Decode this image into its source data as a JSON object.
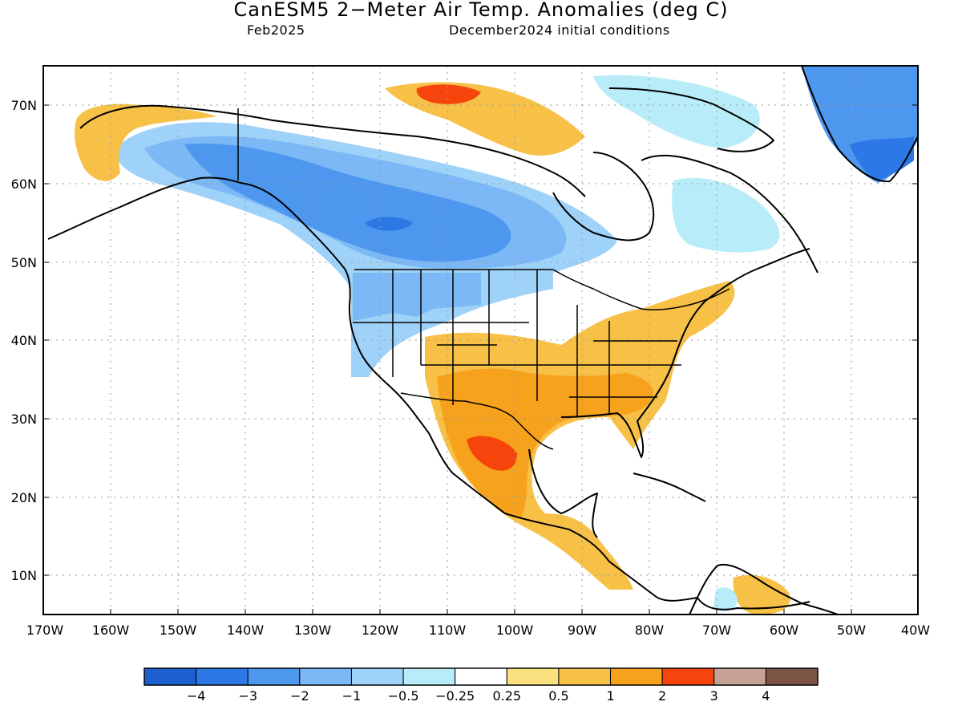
{
  "title": "CanESM5 2−Meter Air Temp. Anomalies (deg C)",
  "forecast_month": "Feb2025",
  "initial_conditions": "December2024 initial conditions",
  "axes": {
    "longitude_labels": [
      "170W",
      "160W",
      "150W",
      "140W",
      "130W",
      "120W",
      "110W",
      "100W",
      "90W",
      "80W",
      "70W",
      "60W",
      "50W",
      "40W"
    ],
    "latitude_labels": [
      "70N",
      "60N",
      "50N",
      "40N",
      "30N",
      "20N",
      "10N"
    ]
  },
  "colorbar": {
    "colors": [
      "#1c5fd0",
      "#2c78e6",
      "#4d97ef",
      "#7bb8f5",
      "#9fd2f8",
      "#b8ecf8",
      "#ffffff",
      "#fbe07f",
      "#f7c046",
      "#f7a21c",
      "#f5440c",
      "#c7a196",
      "#7c5546"
    ],
    "tick_labels": [
      "−4",
      "−3",
      "−2",
      "−1",
      "−0.5",
      "−0.25",
      "0.25",
      "0.5",
      "1",
      "2",
      "3",
      "4"
    ]
  }
}
